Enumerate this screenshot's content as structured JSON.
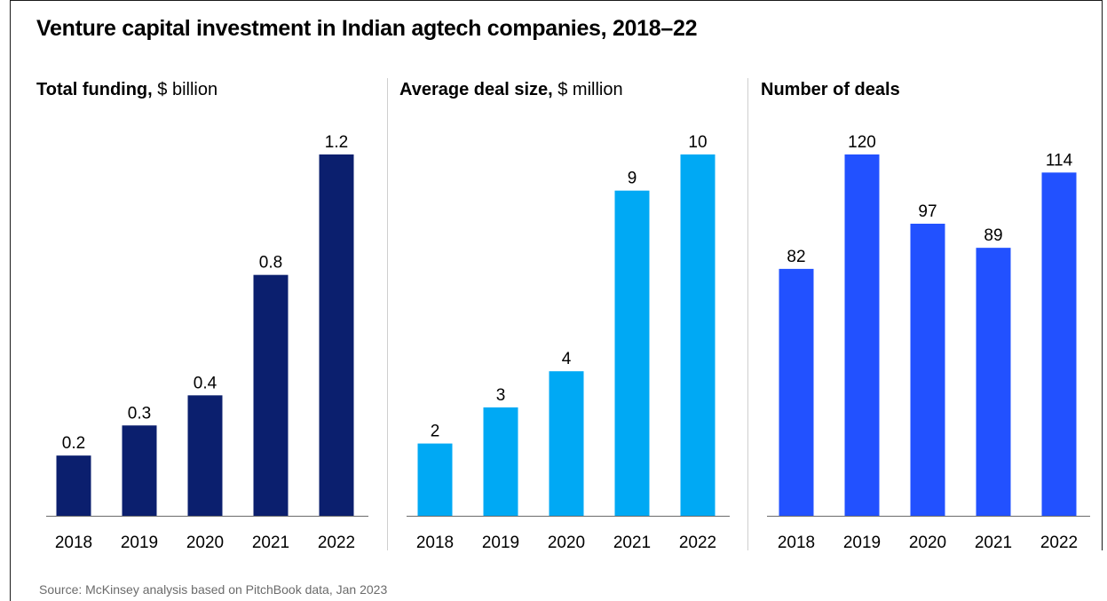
{
  "title": "Venture capital investment in Indian agtech companies, 2018–22",
  "source": "Source: McKinsey analysis based on PitchBook data, Jan 2023",
  "chart_data": [
    {
      "type": "bar",
      "title_bold": "Total funding,",
      "title_unit": " $ billion",
      "categories": [
        "2018",
        "2019",
        "2020",
        "2021",
        "2022"
      ],
      "values": [
        0.2,
        0.3,
        0.4,
        0.8,
        1.2
      ],
      "labels": [
        "0.2",
        "0.3",
        "0.4",
        "0.8",
        "1.2"
      ],
      "color": "#0b1f6e",
      "ylim": [
        0,
        1.2
      ]
    },
    {
      "type": "bar",
      "title_bold": "Average deal size,",
      "title_unit": " $ million",
      "categories": [
        "2018",
        "2019",
        "2020",
        "2021",
        "2022"
      ],
      "values": [
        2,
        3,
        4,
        9,
        10
      ],
      "labels": [
        "2",
        "3",
        "4",
        "9",
        "10"
      ],
      "color": "#00a9f4",
      "ylim": [
        0,
        10
      ]
    },
    {
      "type": "bar",
      "title_bold": "Number of deals",
      "title_unit": "",
      "categories": [
        "2018",
        "2019",
        "2020",
        "2021",
        "2022"
      ],
      "values": [
        82,
        120,
        97,
        89,
        114
      ],
      "labels": [
        "82",
        "120",
        "97",
        "89",
        "114"
      ],
      "color": "#2251ff",
      "ylim": [
        0,
        120
      ]
    }
  ]
}
